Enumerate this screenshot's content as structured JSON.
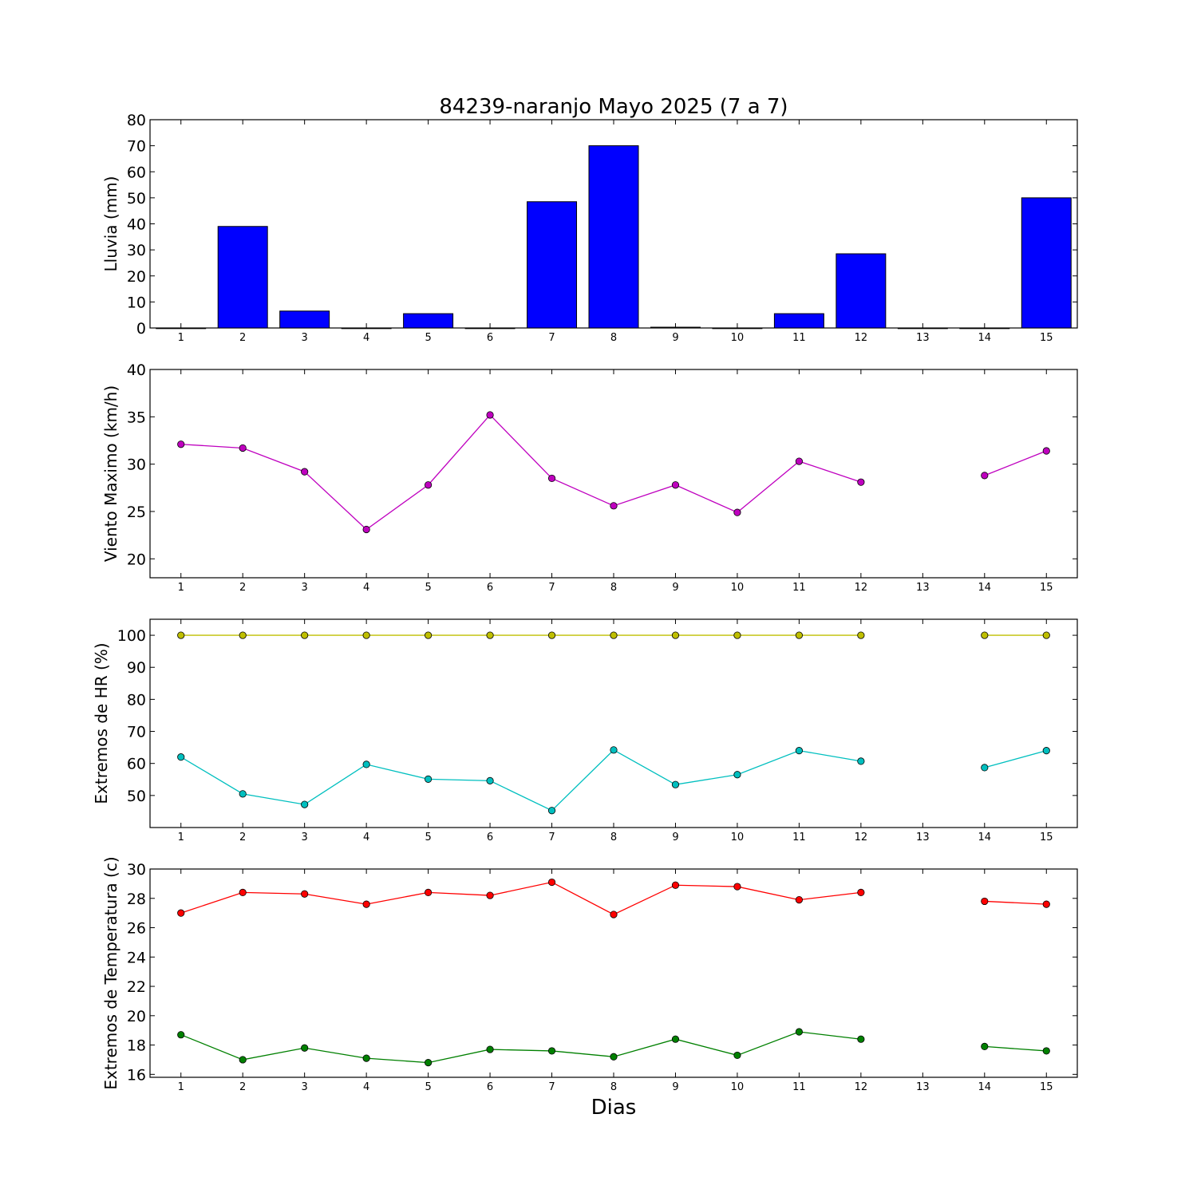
{
  "chart_data": {
    "title": "84239-naranjo Mayo 2025  (7 a 7)",
    "xlabel": "Dias",
    "x": [
      1,
      2,
      3,
      4,
      5,
      6,
      7,
      8,
      9,
      10,
      11,
      12,
      13,
      14,
      15
    ],
    "xticks": [
      "1",
      "2",
      "3",
      "4",
      "5",
      "6",
      "7",
      "8",
      "9",
      "10",
      "11",
      "12",
      "13",
      "14",
      "15"
    ],
    "xlim": [
      0.5,
      15.5
    ],
    "panels": [
      {
        "type": "bar",
        "ylabel": "Lluvia (mm)",
        "ylim": [
          0,
          80
        ],
        "yticks": [
          0,
          10,
          20,
          30,
          40,
          50,
          60,
          70,
          80
        ],
        "series": [
          {
            "color": "#0000ff",
            "values": [
              0,
              39,
              6.5,
              0,
              5.5,
              0,
              48.5,
              70,
              0.3,
              0,
              5.5,
              28.5,
              0,
              0,
              50
            ]
          }
        ]
      },
      {
        "type": "line",
        "ylabel": "Viento Maximo (km/h)",
        "ylim": [
          18,
          40
        ],
        "yticks": [
          20,
          25,
          30,
          35,
          40
        ],
        "series": [
          {
            "color": "#bf00bf",
            "values": [
              32.1,
              31.7,
              29.2,
              23.1,
              27.8,
              35.2,
              28.5,
              25.6,
              27.8,
              24.9,
              30.3,
              28.1,
              null,
              28.8,
              31.4
            ]
          }
        ]
      },
      {
        "type": "line",
        "ylabel": "Extremos de HR (%)",
        "ylim": [
          40,
          105
        ],
        "yticks": [
          50,
          60,
          70,
          80,
          90,
          100
        ],
        "series": [
          {
            "color": "#bfbf00",
            "values": [
              100,
              100,
              100,
              100,
              100,
              100,
              100,
              100,
              100,
              100,
              100,
              100,
              null,
              100,
              100
            ]
          },
          {
            "color": "#00bfbf",
            "values": [
              62,
              50.5,
              47.2,
              59.7,
              55.1,
              54.6,
              45.3,
              64.2,
              53.4,
              56.5,
              64,
              60.7,
              null,
              58.7,
              64
            ]
          }
        ]
      },
      {
        "type": "line",
        "ylabel": "Extremos de Temperatura (c)",
        "ylim": [
          15.8,
          30
        ],
        "yticks": [
          16,
          18,
          20,
          22,
          24,
          26,
          28,
          30
        ],
        "series": [
          {
            "color": "#ff0000",
            "values": [
              27,
              28.4,
              28.3,
              27.6,
              28.4,
              28.2,
              29.1,
              26.9,
              28.9,
              28.8,
              27.9,
              28.4,
              null,
              27.8,
              27.6
            ]
          },
          {
            "color": "#008000",
            "values": [
              18.7,
              17,
              17.8,
              17.1,
              16.8,
              17.7,
              17.6,
              17.2,
              18.4,
              17.3,
              18.9,
              18.4,
              null,
              17.9,
              17.6
            ]
          }
        ]
      }
    ]
  }
}
